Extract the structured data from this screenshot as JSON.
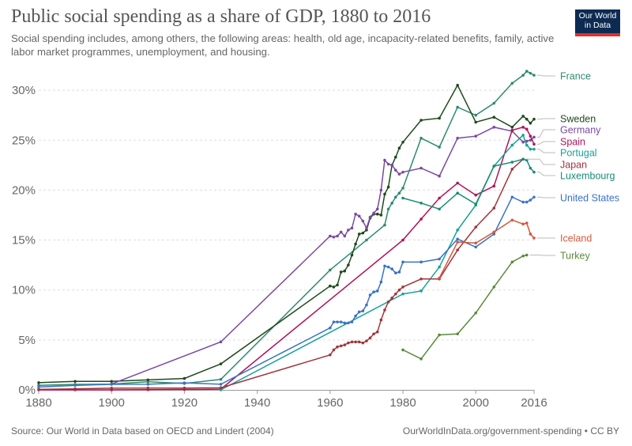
{
  "header": {
    "title": "Public social spending as a share of GDP, 1880 to 2016",
    "subtitle": "Social spending includes, among others, the following areas: health, old age, incapacity-related benefits, family, active labor market programmes, unemployment, and housing.",
    "logo": "Our World in Data"
  },
  "footer": {
    "source": "Source: Our World in Data based on OECD and Lindert (2004)",
    "link": "OurWorldInData.org/government-spending • CC BY"
  },
  "chart_data": {
    "type": "line",
    "title": "Public social spending as a share of GDP, 1880 to 2016",
    "xlim": [
      1880,
      2016
    ],
    "ylim": [
      0,
      32
    ],
    "x_ticks": [
      "1880",
      "1900",
      "1920",
      "1940",
      "1960",
      "1980",
      "2000",
      "2016"
    ],
    "y_ticks": [
      "0%",
      "5%",
      "10%",
      "15%",
      "20%",
      "25%",
      "30%"
    ],
    "grid": "horizontal dashed",
    "legend": "right, labels at line ends",
    "series": [
      {
        "name": "France",
        "color": "#2e8b70",
        "x": [
          1880,
          1890,
          1900,
          1910,
          1920,
          1930,
          1960,
          1970,
          1975,
          1976,
          1977,
          1978,
          1979,
          1980,
          1985,
          1990,
          1995,
          2000,
          2005,
          2010,
          2013,
          2014,
          2015,
          2016
        ],
        "y": [
          0.46,
          0.54,
          0.57,
          0.81,
          0.64,
          1.05,
          12.0,
          15.0,
          16.5,
          18.1,
          18.7,
          19.3,
          19.7,
          20.2,
          25.2,
          24.3,
          28.3,
          27.5,
          28.7,
          30.7,
          31.5,
          31.9,
          31.7,
          31.5
        ]
      },
      {
        "name": "Sweden",
        "color": "#1f4a1c",
        "x": [
          1880,
          1890,
          1900,
          1910,
          1920,
          1930,
          1960,
          1961,
          1962,
          1963,
          1964,
          1965,
          1966,
          1967,
          1968,
          1969,
          1970,
          1971,
          1972,
          1973,
          1974,
          1975,
          1976,
          1977,
          1978,
          1979,
          1980,
          1985,
          1990,
          1995,
          2000,
          2005,
          2010,
          2013,
          2014,
          2015,
          2016
        ],
        "y": [
          0.72,
          0.85,
          0.85,
          1.0,
          1.14,
          2.6,
          10.4,
          10.3,
          10.5,
          11.8,
          11.9,
          12.5,
          13.5,
          14.6,
          15.6,
          15.7,
          16.0,
          17.2,
          17.6,
          17.6,
          17.5,
          19.6,
          20.3,
          22.5,
          23.3,
          24.2,
          24.8,
          27.0,
          27.2,
          30.5,
          26.8,
          27.3,
          26.3,
          27.4,
          27.1,
          26.7,
          27.1
        ]
      },
      {
        "name": "Germany",
        "color": "#7a4aa0",
        "x": [
          1900,
          1930,
          1960,
          1961,
          1962,
          1963,
          1964,
          1965,
          1966,
          1967,
          1968,
          1969,
          1970,
          1971,
          1972,
          1973,
          1974,
          1975,
          1976,
          1977,
          1978,
          1979,
          1980,
          1985,
          1990,
          1995,
          2000,
          2005,
          2010,
          2013,
          2014,
          2015,
          2016
        ],
        "y": [
          0.59,
          4.8,
          15.4,
          15.3,
          15.4,
          15.8,
          15.4,
          16.0,
          16.2,
          17.6,
          17.4,
          16.9,
          16.2,
          17.3,
          17.7,
          18.1,
          20.0,
          23.0,
          22.6,
          22.5,
          22.0,
          21.6,
          21.8,
          22.2,
          21.4,
          25.2,
          25.4,
          26.3,
          25.9,
          24.8,
          24.9,
          25.0,
          25.3
        ]
      },
      {
        "name": "Spain",
        "color": "#b0145a",
        "x": [
          1880,
          1890,
          1900,
          1910,
          1920,
          1930,
          1980,
          1985,
          1990,
          1995,
          2000,
          2005,
          2010,
          2013,
          2014,
          2015,
          2016
        ],
        "y": [
          0.0,
          0.0,
          0.0,
          0.02,
          0.04,
          0.07,
          15.0,
          17.1,
          19.2,
          20.7,
          19.5,
          20.4,
          26.0,
          26.3,
          26.1,
          25.4,
          24.6
        ]
      },
      {
        "name": "Portugal",
        "color": "#17a198",
        "x": [
          1930,
          1980,
          1985,
          1990,
          1995,
          2000,
          2005,
          2010,
          2013,
          2014,
          2015,
          2016
        ],
        "y": [
          0.0,
          9.6,
          9.9,
          12.3,
          16.0,
          18.5,
          22.4,
          24.5,
          25.5,
          24.5,
          24.1,
          24.1
        ]
      },
      {
        "name": "Japan",
        "color": "#a3353b",
        "x": [
          1880,
          1890,
          1900,
          1910,
          1920,
          1930,
          1960,
          1961,
          1962,
          1963,
          1964,
          1965,
          1966,
          1967,
          1968,
          1969,
          1970,
          1971,
          1972,
          1973,
          1974,
          1975,
          1976,
          1977,
          1978,
          1979,
          1980,
          1985,
          1990,
          1995,
          2000,
          2005,
          2010,
          2013
        ],
        "y": [
          0.05,
          0.1,
          0.17,
          0.18,
          0.18,
          0.21,
          3.5,
          4.0,
          4.3,
          4.4,
          4.5,
          4.7,
          4.8,
          4.8,
          4.8,
          4.7,
          4.9,
          5.2,
          5.6,
          5.8,
          7.0,
          8.0,
          8.8,
          9.2,
          9.6,
          10.0,
          10.3,
          11.1,
          11.1,
          14.0,
          16.3,
          18.2,
          22.1,
          23.1
        ]
      },
      {
        "name": "Luxembourg",
        "color": "#1a8c78",
        "x": [
          1980,
          1985,
          1990,
          1995,
          2000,
          2005,
          2010,
          2013,
          2014,
          2015,
          2016
        ],
        "y": [
          19.2,
          18.7,
          18.1,
          19.7,
          18.6,
          22.4,
          22.8,
          23.1,
          23.0,
          22.2,
          21.8
        ]
      },
      {
        "name": "United States",
        "color": "#3a72c8",
        "x": [
          1880,
          1890,
          1900,
          1910,
          1920,
          1930,
          1960,
          1961,
          1962,
          1963,
          1964,
          1965,
          1966,
          1967,
          1968,
          1969,
          1970,
          1971,
          1972,
          1973,
          1974,
          1975,
          1976,
          1977,
          1978,
          1979,
          1980,
          1985,
          1990,
          1995,
          2000,
          2005,
          2010,
          2013,
          2014,
          2015,
          2016
        ],
        "y": [
          0.29,
          0.45,
          0.55,
          0.56,
          0.7,
          0.56,
          6.2,
          6.8,
          6.8,
          6.8,
          6.7,
          6.7,
          6.8,
          7.4,
          7.8,
          7.9,
          8.5,
          9.5,
          9.8,
          9.9,
          10.8,
          12.4,
          12.3,
          12.1,
          11.7,
          11.8,
          12.8,
          12.8,
          13.1,
          15.1,
          14.3,
          15.6,
          19.3,
          18.8,
          18.8,
          19.0,
          19.3
        ]
      },
      {
        "name": "Iceland",
        "color": "#d4583b",
        "x": [
          1990,
          1995,
          2000,
          2005,
          2010,
          2013,
          2014,
          2015,
          2016
        ],
        "y": [
          11.2,
          14.8,
          14.7,
          15.8,
          17.0,
          16.6,
          16.7,
          15.6,
          15.2
        ]
      },
      {
        "name": "Turkey",
        "color": "#5b8a3c",
        "x": [
          1980,
          1985,
          1990,
          1995,
          2000,
          2005,
          2010,
          2013,
          2014
        ],
        "y": [
          4.0,
          3.1,
          5.5,
          5.6,
          7.7,
          10.3,
          12.8,
          13.4,
          13.5
        ]
      }
    ]
  }
}
